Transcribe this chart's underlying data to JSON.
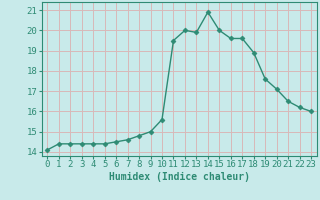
{
  "x": [
    0,
    1,
    2,
    3,
    4,
    5,
    6,
    7,
    8,
    9,
    10,
    11,
    12,
    13,
    14,
    15,
    16,
    17,
    18,
    19,
    20,
    21,
    22,
    23
  ],
  "y": [
    14.1,
    14.4,
    14.4,
    14.4,
    14.4,
    14.4,
    14.5,
    14.6,
    14.8,
    15.0,
    15.6,
    19.5,
    20.0,
    19.9,
    20.9,
    20.0,
    19.6,
    19.6,
    18.9,
    17.6,
    17.1,
    16.5,
    16.2,
    16.0
  ],
  "line_color": "#2e8b74",
  "marker": "D",
  "marker_size": 2.5,
  "bg_color": "#c8eaea",
  "grid_color": "#d8b8b8",
  "xlabel": "Humidex (Indice chaleur)",
  "xlim": [
    -0.5,
    23.5
  ],
  "ylim": [
    13.8,
    21.4
  ],
  "yticks": [
    14,
    15,
    16,
    17,
    18,
    19,
    20,
    21
  ],
  "xticks": [
    0,
    1,
    2,
    3,
    4,
    5,
    6,
    7,
    8,
    9,
    10,
    11,
    12,
    13,
    14,
    15,
    16,
    17,
    18,
    19,
    20,
    21,
    22,
    23
  ],
  "xlabel_fontsize": 7,
  "tick_fontsize": 6.5,
  "line_width": 1.0,
  "tick_color": "#2e8b74"
}
